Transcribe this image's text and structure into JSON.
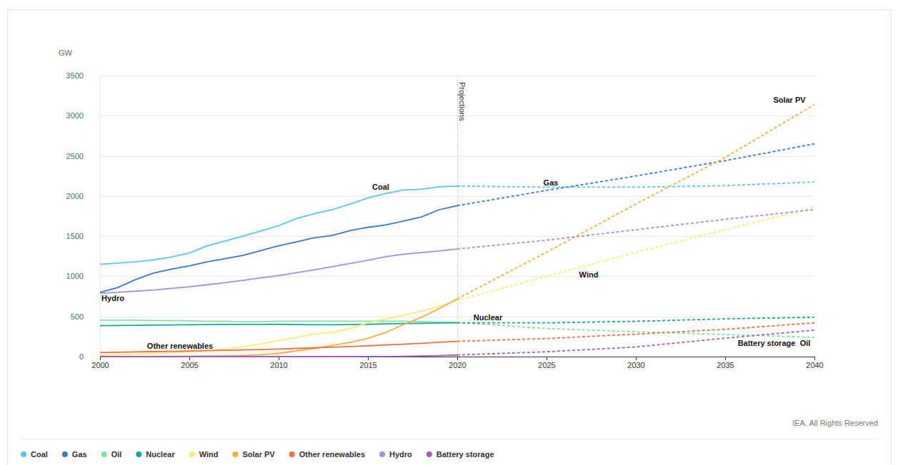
{
  "chart_data": {
    "type": "line",
    "y_label": "GW",
    "source": "IEA. All Rights Reserved",
    "annotations": [
      {
        "text": "Projections",
        "x": 2020
      }
    ],
    "x": [
      2000,
      2001,
      2002,
      2003,
      2004,
      2005,
      2006,
      2007,
      2008,
      2009,
      2010,
      2011,
      2012,
      2013,
      2014,
      2015,
      2016,
      2017,
      2018,
      2019,
      2020,
      2025,
      2030,
      2035,
      2040
    ],
    "xlim": [
      2000,
      2040
    ],
    "xticks": [
      2000,
      2005,
      2010,
      2015,
      2020,
      2025,
      2030,
      2035,
      2040
    ],
    "ylim": [
      0,
      3500
    ],
    "yticks": [
      0,
      500,
      1000,
      1500,
      2000,
      2500,
      3000,
      3500
    ],
    "grid": true,
    "legend": "bottom",
    "series": [
      {
        "name": "Coal",
        "color": "#56c5f2",
        "values": [
          1150,
          1165,
          1180,
          1205,
          1240,
          1290,
          1380,
          1440,
          1500,
          1565,
          1630,
          1720,
          1780,
          1830,
          1900,
          1975,
          2030,
          2075,
          2085,
          2115,
          2125,
          2110,
          2110,
          2130,
          2175
        ]
      },
      {
        "name": "Gas",
        "color": "#3a78d0",
        "values": [
          800,
          860,
          960,
          1040,
          1090,
          1130,
          1180,
          1220,
          1260,
          1320,
          1380,
          1430,
          1480,
          1510,
          1570,
          1610,
          1640,
          1690,
          1740,
          1830,
          1880,
          2070,
          2250,
          2440,
          2650
        ]
      },
      {
        "name": "Oil",
        "color": "#7fe3a0",
        "values": [
          455,
          455,
          455,
          450,
          450,
          445,
          440,
          440,
          435,
          435,
          440,
          440,
          440,
          440,
          440,
          440,
          440,
          440,
          435,
          430,
          425,
          350,
          310,
          275,
          240
        ]
      },
      {
        "name": "Nuclear",
        "color": "#14a89a",
        "values": [
          385,
          388,
          390,
          392,
          395,
          397,
          398,
          400,
          400,
          400,
          402,
          398,
          397,
          396,
          398,
          402,
          408,
          412,
          415,
          418,
          420,
          420,
          440,
          470,
          490
        ]
      },
      {
        "name": "Wind",
        "color": "#fbec6c",
        "values": [
          17,
          24,
          31,
          40,
          48,
          59,
          74,
          94,
          121,
          159,
          198,
          238,
          283,
          300,
          350,
          420,
          470,
          515,
          565,
          625,
          700,
          1000,
          1300,
          1580,
          1860
        ]
      },
      {
        "name": "Solar PV",
        "color": "#f6ad3c",
        "values": [
          1,
          1,
          2,
          3,
          4,
          5,
          7,
          9,
          15,
          23,
          40,
          71,
          100,
          138,
          177,
          228,
          300,
          400,
          490,
          600,
          720,
          1300,
          1900,
          2480,
          3140
        ]
      },
      {
        "name": "Other renewables",
        "color": "#f26d3d",
        "values": [
          50,
          55,
          58,
          62,
          66,
          70,
          74,
          78,
          83,
          88,
          95,
          102,
          110,
          117,
          125,
          135,
          145,
          155,
          165,
          178,
          190,
          225,
          280,
          340,
          420
        ]
      },
      {
        "name": "Hydro",
        "color": "#a98ce2",
        "values": [
          790,
          800,
          815,
          830,
          850,
          870,
          895,
          920,
          950,
          980,
          1010,
          1045,
          1080,
          1120,
          1160,
          1200,
          1245,
          1275,
          1295,
          1315,
          1340,
          1450,
          1580,
          1710,
          1830
        ]
      },
      {
        "name": "Battery storage",
        "color": "#a85cbf",
        "values": [
          0,
          0,
          0,
          0,
          0,
          0,
          0,
          0,
          0,
          0,
          0,
          0,
          0,
          0,
          0,
          1,
          2,
          4,
          8,
          12,
          20,
          60,
          120,
          230,
          330
        ]
      }
    ]
  }
}
